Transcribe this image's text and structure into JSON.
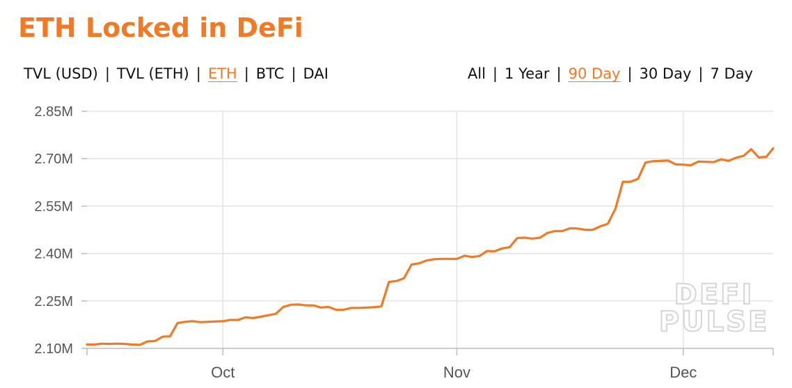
{
  "title": "ETH Locked in DeFi",
  "colors": {
    "accent": "#f07a25",
    "line": "#f07a25",
    "grid": "#e3e3e3",
    "axis": "#bbbbbb",
    "text": "#111111"
  },
  "unit_tabs": [
    {
      "label": "TVL (USD)",
      "active": false
    },
    {
      "label": "TVL (ETH)",
      "active": false
    },
    {
      "label": "ETH",
      "active": true
    },
    {
      "label": "BTC",
      "active": false
    },
    {
      "label": "DAI",
      "active": false
    }
  ],
  "range_tabs": [
    {
      "label": "All",
      "active": false
    },
    {
      "label": "1 Year",
      "active": false
    },
    {
      "label": "90 Day",
      "active": true
    },
    {
      "label": "30 Day",
      "active": false
    },
    {
      "label": "7 Day",
      "active": false
    }
  ],
  "separator": "|",
  "watermark": [
    "DEFI",
    "PULSE"
  ],
  "chart_data": {
    "type": "line",
    "title": "ETH Locked in DeFi",
    "x_range": [
      "2020-09-13",
      "2020-12-12"
    ],
    "ylim": [
      2.1,
      2.85
    ],
    "y_unit": "M",
    "y_ticks": [
      {
        "value": 2.1,
        "label": "2.10M"
      },
      {
        "value": 2.25,
        "label": "2.25M"
      },
      {
        "value": 2.4,
        "label": "2.40M"
      },
      {
        "value": 2.55,
        "label": "2.55M"
      },
      {
        "value": 2.7,
        "label": "2.70M"
      },
      {
        "value": 2.85,
        "label": "2.85M"
      }
    ],
    "x_ticks": [
      {
        "date": "2020-10-01",
        "label": "Oct"
      },
      {
        "date": "2020-11-01",
        "label": "Nov"
      },
      {
        "date": "2020-12-01",
        "label": "Dec"
      }
    ],
    "grid": true,
    "series": [
      {
        "color": "#f07a25",
        "points": [
          [
            "2020-09-13",
            2.112
          ],
          [
            "2020-09-14",
            2.112
          ],
          [
            "2020-09-15",
            2.115
          ],
          [
            "2020-09-16",
            2.114
          ],
          [
            "2020-09-17",
            2.115
          ],
          [
            "2020-09-18",
            2.114
          ],
          [
            "2020-09-19",
            2.112
          ],
          [
            "2020-09-20",
            2.111
          ],
          [
            "2020-09-21",
            2.122
          ],
          [
            "2020-09-22",
            2.123
          ],
          [
            "2020-09-23",
            2.137
          ],
          [
            "2020-09-24",
            2.138
          ],
          [
            "2020-09-25",
            2.18
          ],
          [
            "2020-09-26",
            2.184
          ],
          [
            "2020-09-27",
            2.186
          ],
          [
            "2020-09-28",
            2.183
          ],
          [
            "2020-09-29",
            2.184
          ],
          [
            "2020-09-30",
            2.185
          ],
          [
            "2020-10-01",
            2.186
          ],
          [
            "2020-10-02",
            2.19
          ],
          [
            "2020-10-03",
            2.19
          ],
          [
            "2020-10-04",
            2.198
          ],
          [
            "2020-10-05",
            2.196
          ],
          [
            "2020-10-06",
            2.2
          ],
          [
            "2020-10-07",
            2.205
          ],
          [
            "2020-10-08",
            2.209
          ],
          [
            "2020-10-09",
            2.231
          ],
          [
            "2020-10-10",
            2.238
          ],
          [
            "2020-10-11",
            2.239
          ],
          [
            "2020-10-12",
            2.236
          ],
          [
            "2020-10-13",
            2.236
          ],
          [
            "2020-10-14",
            2.229
          ],
          [
            "2020-10-15",
            2.231
          ],
          [
            "2020-10-16",
            2.222
          ],
          [
            "2020-10-17",
            2.222
          ],
          [
            "2020-10-18",
            2.228
          ],
          [
            "2020-10-19",
            2.228
          ],
          [
            "2020-10-20",
            2.229
          ],
          [
            "2020-10-21",
            2.23
          ],
          [
            "2020-10-22",
            2.233
          ],
          [
            "2020-10-23",
            2.31
          ],
          [
            "2020-10-24",
            2.313
          ],
          [
            "2020-10-25",
            2.322
          ],
          [
            "2020-10-26",
            2.365
          ],
          [
            "2020-10-27",
            2.369
          ],
          [
            "2020-10-28",
            2.378
          ],
          [
            "2020-10-29",
            2.382
          ],
          [
            "2020-10-30",
            2.383
          ],
          [
            "2020-10-31",
            2.383
          ],
          [
            "2020-11-01",
            2.383
          ],
          [
            "2020-11-02",
            2.393
          ],
          [
            "2020-11-03",
            2.389
          ],
          [
            "2020-11-04",
            2.392
          ],
          [
            "2020-11-05",
            2.408
          ],
          [
            "2020-11-06",
            2.407
          ],
          [
            "2020-11-07",
            2.416
          ],
          [
            "2020-11-08",
            2.42
          ],
          [
            "2020-11-09",
            2.449
          ],
          [
            "2020-11-10",
            2.45
          ],
          [
            "2020-11-11",
            2.447
          ],
          [
            "2020-11-12",
            2.45
          ],
          [
            "2020-11-13",
            2.465
          ],
          [
            "2020-11-14",
            2.471
          ],
          [
            "2020-11-15",
            2.471
          ],
          [
            "2020-11-16",
            2.48
          ],
          [
            "2020-11-17",
            2.479
          ],
          [
            "2020-11-18",
            2.475
          ],
          [
            "2020-11-19",
            2.475
          ],
          [
            "2020-11-20",
            2.486
          ],
          [
            "2020-11-21",
            2.494
          ],
          [
            "2020-11-22",
            2.541
          ],
          [
            "2020-11-23",
            2.627
          ],
          [
            "2020-11-24",
            2.627
          ],
          [
            "2020-11-25",
            2.636
          ],
          [
            "2020-11-26",
            2.688
          ],
          [
            "2020-11-27",
            2.692
          ],
          [
            "2020-11-28",
            2.693
          ],
          [
            "2020-11-29",
            2.694
          ],
          [
            "2020-11-30",
            2.682
          ],
          [
            "2020-12-01",
            2.681
          ],
          [
            "2020-12-02",
            2.679
          ],
          [
            "2020-12-03",
            2.691
          ],
          [
            "2020-12-04",
            2.69
          ],
          [
            "2020-12-05",
            2.689
          ],
          [
            "2020-12-06",
            2.698
          ],
          [
            "2020-12-07",
            2.693
          ],
          [
            "2020-12-08",
            2.703
          ],
          [
            "2020-12-09",
            2.709
          ],
          [
            "2020-12-10",
            2.73
          ],
          [
            "2020-12-11",
            2.704
          ],
          [
            "2020-12-12",
            2.706
          ],
          [
            "2020-12-12T22:00",
            2.733
          ]
        ]
      }
    ]
  }
}
